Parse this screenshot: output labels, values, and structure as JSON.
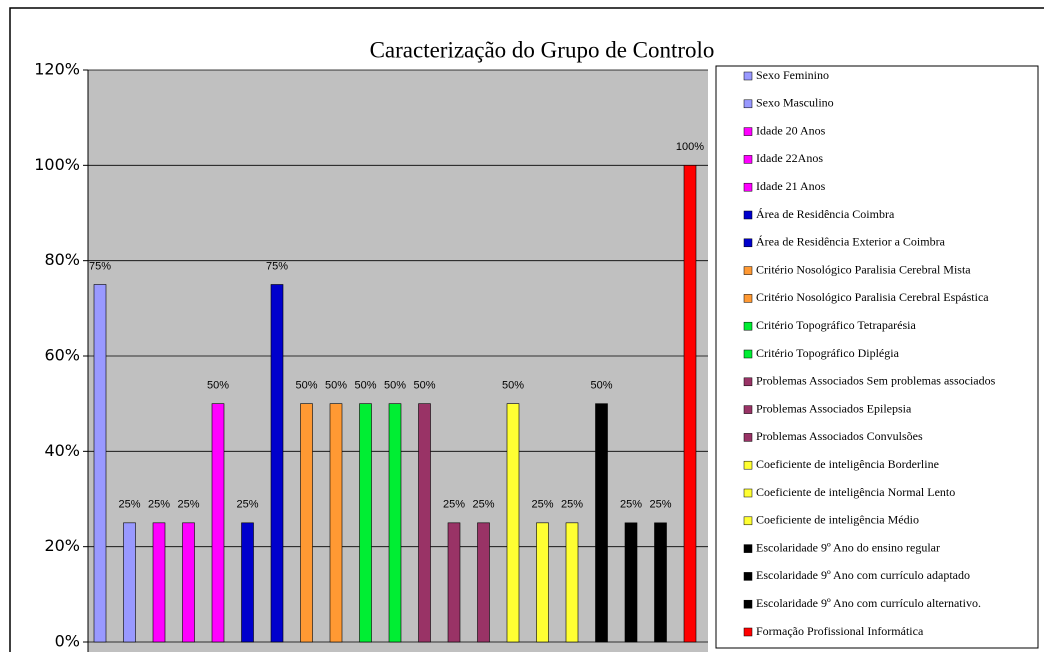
{
  "chart_data": {
    "type": "bar",
    "title": "Caracterização do Grupo de Controlo",
    "ylim": [
      0,
      120
    ],
    "yticks": [
      {
        "value": 0,
        "label": "0%"
      },
      {
        "value": 20,
        "label": "20%"
      },
      {
        "value": 40,
        "label": "40%"
      },
      {
        "value": 60,
        "label": "60%"
      },
      {
        "value": 80,
        "label": "80%"
      },
      {
        "value": 100,
        "label": "100%"
      },
      {
        "value": 120,
        "label": "120%"
      }
    ],
    "grid": true,
    "legend": "right",
    "series": [
      {
        "name": "Sexo Feminino",
        "color": "#9999ff",
        "values": [
          75
        ],
        "value_labels": [
          "75%"
        ]
      },
      {
        "name": "Sexo Masculino",
        "color": "#9999ff",
        "values": [
          25
        ],
        "value_labels": [
          "25%"
        ]
      },
      {
        "name": "Idade 20 Anos",
        "color": "#ff00ff",
        "values": [
          25
        ],
        "value_labels": [
          "25%"
        ]
      },
      {
        "name": "Idade  22Anos",
        "color": "#ff00ff",
        "values": [
          25
        ],
        "value_labels": [
          "25%"
        ]
      },
      {
        "name": "Idade 21 Anos",
        "color": "#ff00ff",
        "values": [
          50
        ],
        "value_labels": [
          "50%"
        ]
      },
      {
        "name": "Área de Residência Coimbra",
        "color": "#0000cc",
        "values": [
          25
        ],
        "value_labels": [
          "25%"
        ]
      },
      {
        "name": "Área de Residência Exterior a Coimbra",
        "color": "#0000cc",
        "values": [
          75
        ],
        "value_labels": [
          "75%"
        ]
      },
      {
        "name": "Critério Nosológico Paralisia Cerebral Mista",
        "color": "#ff9933",
        "values": [
          50
        ],
        "value_labels": [
          "50%"
        ]
      },
      {
        "name": "Critério Nosológico Paralisia Cerebral Espástica",
        "color": "#ff9933",
        "values": [
          50
        ],
        "value_labels": [
          "50%"
        ]
      },
      {
        "name": "Critério Topográfico Tetraparésia",
        "color": "#00ee33",
        "values": [
          50
        ],
        "value_labels": [
          "50%"
        ]
      },
      {
        "name": "Critério Topográfico Diplégia",
        "color": "#00ee33",
        "values": [
          50
        ],
        "value_labels": [
          "50%"
        ]
      },
      {
        "name": "Problemas Associados Sem problemas associados",
        "color": "#993366",
        "values": [
          50
        ],
        "value_labels": [
          "50%"
        ]
      },
      {
        "name": "Problemas Associados Epilepsia",
        "color": "#993366",
        "values": [
          25
        ],
        "value_labels": [
          "25%"
        ]
      },
      {
        "name": "Problemas Associados Convulsões",
        "color": "#993366",
        "values": [
          25
        ],
        "value_labels": [
          "25%"
        ]
      },
      {
        "name": "Coeficiente de inteligência Borderline",
        "color": "#ffff33",
        "values": [
          50
        ],
        "value_labels": [
          "50%"
        ]
      },
      {
        "name": "Coeficiente de inteligência Normal Lento",
        "color": "#ffff33",
        "values": [
          25
        ],
        "value_labels": [
          "25%"
        ]
      },
      {
        "name": "Coeficiente de inteligência Médio",
        "color": "#ffff33",
        "values": [
          25
        ],
        "value_labels": [
          "25%"
        ]
      },
      {
        "name": "Escolaridade 9º Ano do ensino regular",
        "color": "#000000",
        "values": [
          50
        ],
        "value_labels": [
          "50%"
        ]
      },
      {
        "name": "Escolaridade  9º Ano com currículo adaptado",
        "color": "#000000",
        "values": [
          25
        ],
        "value_labels": [
          "25%"
        ]
      },
      {
        "name": "Escolaridade 9º Ano com currículo alternativo.",
        "color": "#000000",
        "values": [
          25
        ],
        "value_labels": [
          "25%"
        ]
      },
      {
        "name": "Formação Profissional Informática",
        "color": "#ff0000",
        "values": [
          100
        ],
        "value_labels": [
          "100%"
        ]
      }
    ]
  }
}
